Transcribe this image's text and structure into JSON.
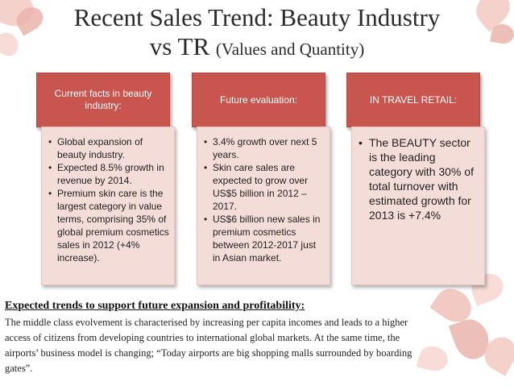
{
  "title": {
    "line1": "Recent Sales Trend: Beauty Industry",
    "line2_main": "vs TR",
    "line2_sub": "(Values and Quantity)"
  },
  "columns": [
    {
      "heading": "Current facts in beauty industry:",
      "bullets": [
        "Global expansion of beauty industry.",
        "Expected 8.5% growth in revenue by 2014.",
        "Premium skin care is the largest category in value terms, comprising 35% of global premium cosmetics sales in 2012 (+4% increase)."
      ]
    },
    {
      "heading": "Future evaluation:",
      "bullets": [
        "3.4% growth over next 5 years.",
        "Skin care sales are expected to grow over US$5 billion in 2012 – 2017.",
        "US$6 billion new sales in premium cosmetics between 2012-2017 just in Asian market."
      ]
    },
    {
      "heading": "IN TRAVEL RETAIL:",
      "bullets": [
        "The BEAUTY sector is the leading category with 30% of total turnover with estimated growth for 2013 is +7.4%"
      ]
    }
  ],
  "bottom": {
    "heading": "Expected trends to support future expansion and profitability:",
    "paragraph": "The middle class evolvement is characterised by increasing per capita incomes and leads to a higher access of  citizens from developing countries to international global markets. At the same time, the airports’ business model is changing; “Today airports are big shopping malls surrounded by boarding gates”."
  },
  "colors": {
    "header_fill": "#c8554e",
    "body_fill": "#f4dcd8"
  }
}
